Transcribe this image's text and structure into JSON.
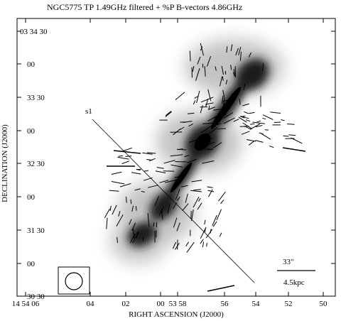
{
  "title": "NGC5775 TP 1.49GHz filtered + %P B-vectors 4.86GHz",
  "x_axis": {
    "label": "RIGHT ASCENSION (J2000)",
    "ticks": [
      "14 54 06",
      "04",
      "02",
      "00",
      "53 58",
      "56",
      "54",
      "52",
      "50"
    ]
  },
  "y_axis": {
    "label": "DECLINATION (J2000)",
    "ticks": [
      "03 34 30",
      "00",
      "33 30",
      "00",
      "32 30",
      "00",
      "31 30",
      "00",
      "30 30"
    ]
  },
  "annotations": {
    "slice_label": "s1",
    "scale_angle": "33\"",
    "scale_physical": "4.5kpc"
  },
  "colors": {
    "ink": "#000000",
    "emission": "#1a1a1a",
    "background": "#ffffff"
  }
}
